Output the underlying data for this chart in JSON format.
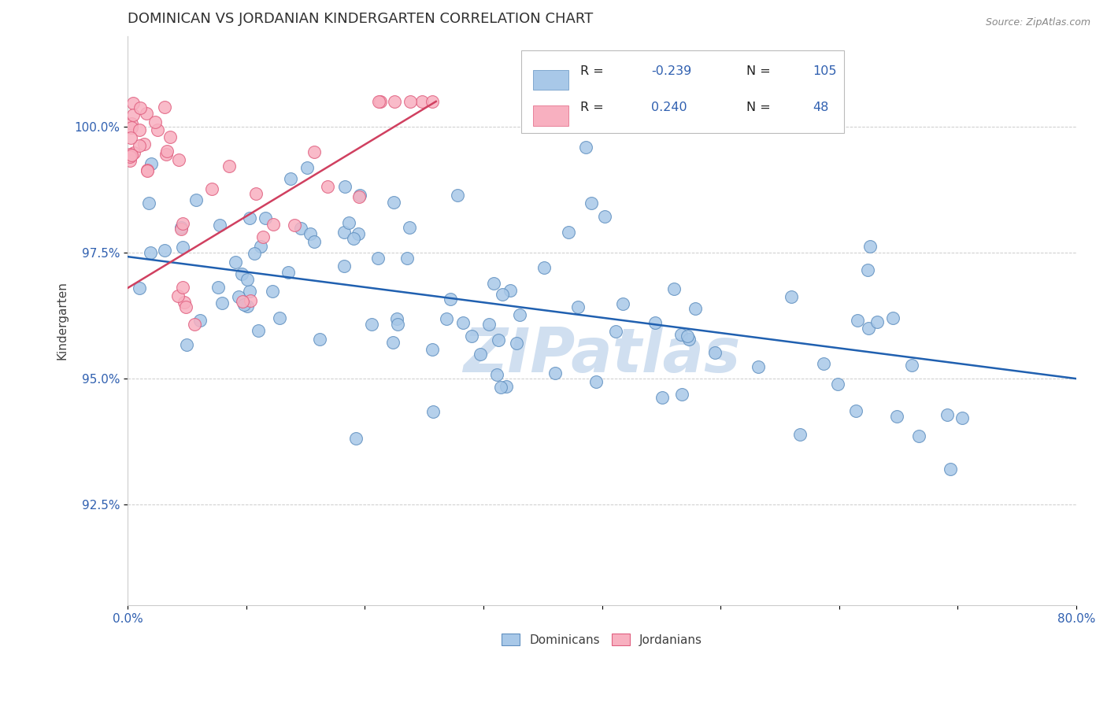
{
  "title": "DOMINICAN VS JORDANIAN KINDERGARTEN CORRELATION CHART",
  "source_text": "Source: ZipAtlas.com",
  "ylabel": "Kindergarten",
  "xlim": [
    0.0,
    80.0
  ],
  "ylim": [
    90.5,
    101.8
  ],
  "yticks": [
    92.5,
    95.0,
    97.5,
    100.0
  ],
  "ytick_labels": [
    "92.5%",
    "95.0%",
    "97.5%",
    "100.0%"
  ],
  "xtick_positions": [
    0,
    10,
    20,
    30,
    40,
    50,
    60,
    70,
    80
  ],
  "xtick_labels": [
    "0.0%",
    "",
    "",
    "",
    "",
    "",
    "",
    "",
    "80.0%"
  ],
  "blue_R": -0.239,
  "blue_N": 105,
  "pink_R": 0.24,
  "pink_N": 48,
  "blue_color": "#a8c8e8",
  "blue_edge_color": "#6090c0",
  "pink_color": "#f8b0c0",
  "pink_edge_color": "#e06080",
  "blue_line_color": "#2060b0",
  "pink_line_color": "#d04060",
  "title_color": "#303030",
  "axis_label_color": "#404040",
  "tick_color": "#3060b0",
  "watermark_color": "#d0dff0",
  "legend_label_blue": "Dominicans",
  "legend_label_pink": "Jordanians",
  "blue_line_x": [
    0.0,
    80.0
  ],
  "blue_line_y": [
    97.42,
    95.0
  ],
  "pink_line_x": [
    0.0,
    26.0
  ],
  "pink_line_y": [
    96.8,
    100.5
  ]
}
